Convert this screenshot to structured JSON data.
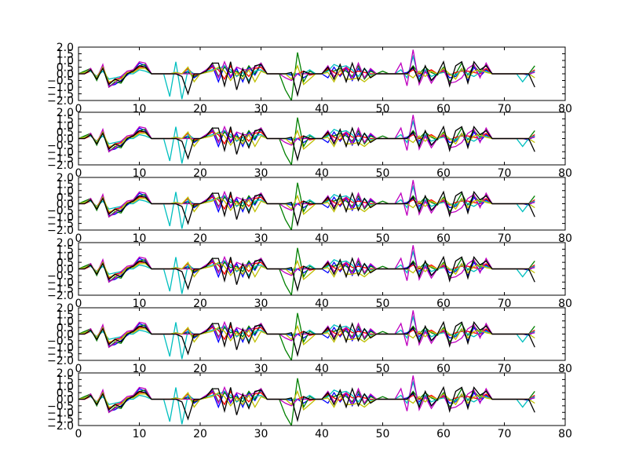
{
  "chart_data": {
    "type": "line",
    "panel_count": 6,
    "xlim": [
      0,
      80
    ],
    "ylim": [
      -2.0,
      2.0
    ],
    "x_tick_labels": [
      "0",
      "10",
      "20",
      "30",
      "40",
      "50",
      "60",
      "70",
      "80"
    ],
    "y_tick_labels": [
      "2.0",
      "1.5",
      "1.0",
      "0.5",
      "0.0",
      "−0.5",
      "−1.0",
      "−1.5",
      "−2.0"
    ],
    "grid": false,
    "legend": "none",
    "x": [
      0,
      1,
      2,
      3,
      4,
      5,
      6,
      7,
      8,
      9,
      10,
      11,
      12,
      13,
      14,
      15,
      16,
      17,
      18,
      19,
      20,
      21,
      22,
      23,
      24,
      25,
      26,
      27,
      28,
      29,
      30,
      31,
      32,
      33,
      34,
      35,
      36,
      37,
      38,
      39,
      40,
      41,
      42,
      43,
      44,
      45,
      46,
      47,
      48,
      49,
      50,
      51,
      52,
      53,
      54,
      55,
      56,
      57,
      58,
      59,
      60,
      61,
      62,
      63,
      64,
      65,
      66,
      67,
      68,
      69,
      70,
      71,
      72,
      73,
      74,
      75
    ],
    "series": [
      {
        "color": "#0000ff",
        "values": [
          0.0,
          0.1,
          0.3,
          -0.3,
          0.6,
          -0.9,
          -0.8,
          -0.5,
          -0.1,
          0.2,
          0.8,
          0.6,
          0.0,
          0.0,
          0.0,
          0.0,
          0.1,
          0.0,
          0.2,
          -0.3,
          0.0,
          0.3,
          0.6,
          -0.6,
          0.6,
          -0.3,
          0.4,
          -0.6,
          0.5,
          -0.1,
          0.7,
          0.0,
          0.0,
          0.0,
          0.0,
          -0.1,
          0.0,
          -0.3,
          0.0,
          0.0,
          0.0,
          -0.3,
          0.5,
          -0.2,
          0.4,
          -0.5,
          0.4,
          -0.3,
          0.3,
          0.0,
          0.0,
          0.0,
          0.0,
          0.0,
          0.1,
          0.4,
          -0.2,
          0.3,
          -0.5,
          0.0,
          0.3,
          -0.3,
          -0.2,
          0.4,
          -0.5,
          0.5,
          -0.2,
          0.3,
          0.0,
          0.0,
          0.0,
          0.0,
          0.0,
          0.0,
          -0.1,
          0.2
        ]
      },
      {
        "color": "#008000",
        "values": [
          0.0,
          0.2,
          0.4,
          -0.5,
          0.5,
          -1.0,
          -0.6,
          -0.7,
          0.0,
          0.3,
          0.6,
          0.7,
          0.0,
          0.0,
          0.0,
          0.0,
          0.0,
          0.0,
          0.1,
          -0.2,
          0.0,
          0.1,
          0.8,
          -0.2,
          0.5,
          0.1,
          0.2,
          -0.2,
          0.6,
          0.0,
          0.8,
          0.0,
          0.0,
          0.0,
          -1.2,
          -2.0,
          1.6,
          -0.6,
          0.2,
          0.0,
          0.0,
          0.3,
          0.2,
          0.4,
          0.2,
          -0.2,
          0.6,
          -0.4,
          0.2,
          0.0,
          0.2,
          0.0,
          0.0,
          0.0,
          0.0,
          0.6,
          0.0,
          0.5,
          0.1,
          -0.1,
          0.5,
          -0.6,
          0.0,
          0.8,
          -0.1,
          0.6,
          0.1,
          0.7,
          0.0,
          0.0,
          0.0,
          0.0,
          0.0,
          0.0,
          0.0,
          0.6
        ]
      },
      {
        "color": "#ff0000",
        "values": [
          0.0,
          0.0,
          0.2,
          -0.2,
          0.4,
          -0.7,
          -0.4,
          -0.3,
          0.1,
          0.2,
          0.5,
          0.5,
          0.0,
          0.0,
          0.0,
          0.0,
          0.0,
          0.0,
          0.4,
          -0.1,
          0.0,
          0.2,
          0.5,
          0.3,
          -0.4,
          0.6,
          -0.2,
          0.3,
          -0.2,
          0.4,
          0.5,
          0.0,
          0.0,
          0.0,
          0.0,
          0.0,
          0.0,
          0.2,
          -0.1,
          0.0,
          0.0,
          0.4,
          0.1,
          -0.1,
          0.5,
          0.1,
          0.2,
          0.1,
          0.0,
          0.0,
          0.0,
          0.0,
          0.0,
          0.0,
          0.0,
          0.3,
          0.0,
          0.1,
          0.3,
          0.0,
          0.2,
          -0.1,
          0.1,
          0.2,
          0.2,
          0.1,
          0.0,
          0.4,
          0.0,
          0.0,
          0.0,
          0.0,
          0.0,
          0.0,
          0.0,
          0.3
        ]
      },
      {
        "color": "#00bfbf",
        "values": [
          0.0,
          0.1,
          0.2,
          -0.2,
          0.2,
          -0.4,
          -0.3,
          -0.2,
          0.0,
          0.0,
          0.3,
          0.2,
          0.0,
          0.0,
          0.0,
          -1.7,
          0.9,
          -1.9,
          0.3,
          0.0,
          0.0,
          0.2,
          0.3,
          0.4,
          0.6,
          0.3,
          -0.2,
          0.1,
          -0.5,
          0.2,
          0.3,
          0.0,
          0.0,
          0.0,
          0.0,
          0.0,
          0.0,
          0.0,
          0.3,
          0.0,
          0.0,
          0.2,
          0.7,
          0.5,
          0.6,
          0.3,
          -0.2,
          0.4,
          -0.1,
          0.0,
          0.0,
          0.0,
          0.0,
          0.3,
          -0.3,
          1.3,
          -0.4,
          0.3,
          -0.2,
          0.0,
          0.1,
          0.0,
          -0.1,
          0.3,
          0.0,
          -0.2,
          0.1,
          0.2,
          0.0,
          0.0,
          0.0,
          0.0,
          0.0,
          -0.6,
          0.0,
          0.2
        ]
      },
      {
        "color": "#bf00bf",
        "values": [
          0.0,
          0.0,
          0.4,
          -0.4,
          0.7,
          -1.0,
          -0.7,
          -0.2,
          0.2,
          0.3,
          0.9,
          0.8,
          0.0,
          0.0,
          0.0,
          0.0,
          0.0,
          0.0,
          0.0,
          0.0,
          0.0,
          0.3,
          0.7,
          -0.3,
          0.9,
          -0.2,
          0.5,
          0.3,
          0.3,
          0.5,
          0.8,
          0.0,
          0.0,
          0.0,
          -0.3,
          -0.5,
          0.0,
          0.0,
          0.0,
          0.0,
          0.0,
          0.6,
          -0.2,
          0.2,
          0.5,
          -0.4,
          0.8,
          -0.3,
          0.4,
          0.0,
          0.0,
          0.0,
          0.0,
          0.8,
          -0.9,
          1.8,
          -0.8,
          0.2,
          -0.7,
          0.0,
          0.3,
          -0.7,
          -0.6,
          -0.3,
          0.4,
          0.7,
          -0.3,
          0.8,
          0.0,
          0.0,
          0.0,
          0.0,
          0.0,
          0.0,
          0.0,
          0.1
        ]
      },
      {
        "color": "#bfbf00",
        "values": [
          0.0,
          0.1,
          0.3,
          -0.3,
          0.5,
          -0.6,
          -0.5,
          -0.4,
          0.1,
          0.1,
          0.4,
          0.4,
          0.0,
          0.0,
          0.0,
          0.0,
          0.1,
          0.0,
          0.5,
          -0.6,
          0.0,
          0.1,
          0.2,
          0.5,
          0.2,
          -0.5,
          0.1,
          -0.4,
          0.3,
          -0.6,
          0.2,
          0.0,
          0.0,
          0.0,
          0.0,
          -0.4,
          0.6,
          -0.8,
          -0.4,
          0.0,
          0.0,
          0.1,
          -0.6,
          0.3,
          -0.4,
          -0.4,
          -0.3,
          -0.6,
          -0.2,
          0.0,
          0.0,
          0.0,
          0.0,
          0.0,
          0.0,
          -0.3,
          0.2,
          -0.2,
          0.2,
          0.0,
          0.4,
          0.0,
          -0.4,
          0.4,
          -0.3,
          0.2,
          0.3,
          0.1,
          0.0,
          0.0,
          0.0,
          0.0,
          0.0,
          0.0,
          0.0,
          -0.3
        ]
      },
      {
        "color": "#000000",
        "values": [
          0.0,
          0.0,
          0.3,
          -0.4,
          0.4,
          -0.8,
          -0.4,
          -0.6,
          0.0,
          0.2,
          0.6,
          0.5,
          0.0,
          0.0,
          0.0,
          0.0,
          0.0,
          -0.2,
          -1.5,
          0.0,
          0.0,
          0.2,
          0.8,
          0.8,
          -0.9,
          0.9,
          -1.2,
          0.4,
          -0.7,
          0.6,
          0.7,
          0.0,
          0.0,
          0.0,
          0.0,
          0.1,
          -1.6,
          0.2,
          0.0,
          0.0,
          0.0,
          0.5,
          -0.4,
          0.7,
          -0.6,
          0.8,
          -0.5,
          0.4,
          -0.3,
          0.0,
          0.0,
          0.0,
          0.0,
          0.0,
          0.0,
          0.5,
          -0.6,
          0.6,
          -0.5,
          0.0,
          0.9,
          -0.9,
          0.6,
          0.9,
          -0.7,
          0.9,
          0.3,
          0.6,
          0.0,
          0.0,
          0.0,
          0.0,
          0.0,
          0.0,
          0.0,
          -1.0
        ]
      }
    ]
  }
}
